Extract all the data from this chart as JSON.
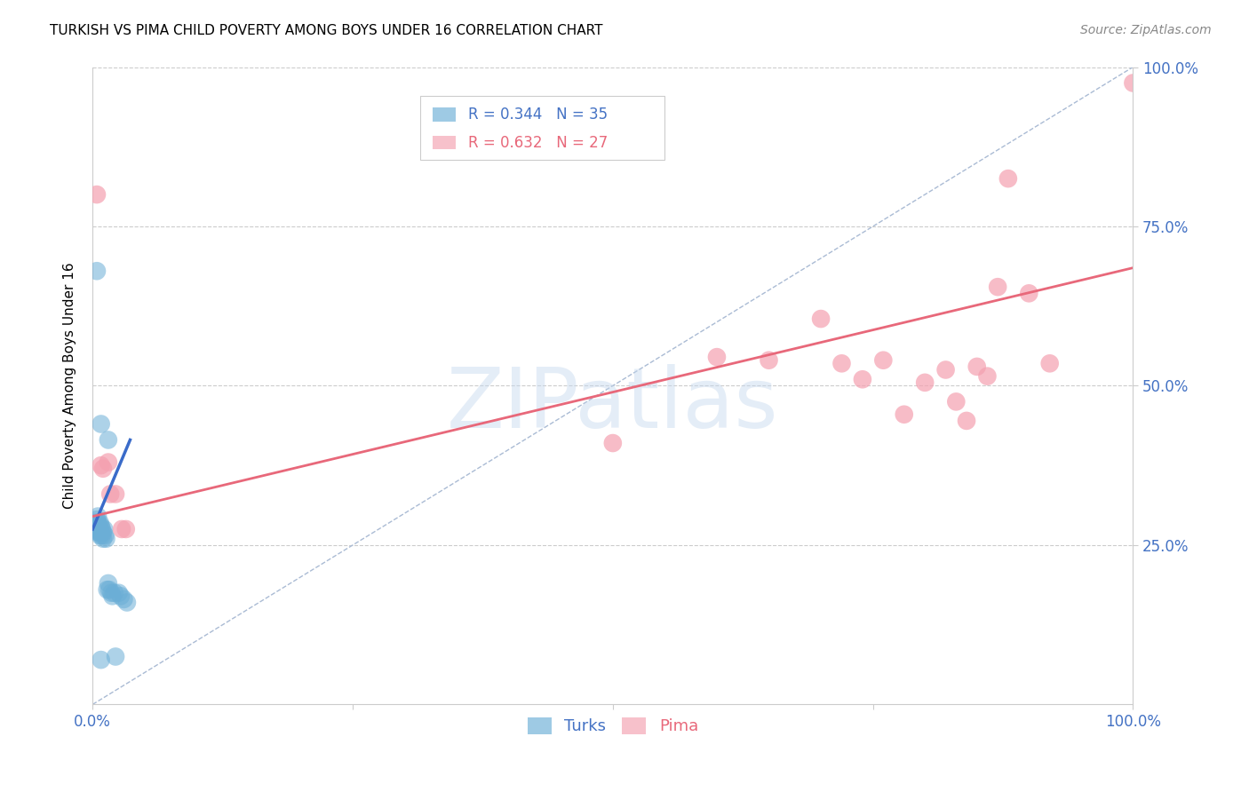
{
  "title": "TURKISH VS PIMA CHILD POVERTY AMONG BOYS UNDER 16 CORRELATION CHART",
  "source": "Source: ZipAtlas.com",
  "ylabel": "Child Poverty Among Boys Under 16",
  "xlim": [
    0.0,
    1.0
  ],
  "ylim": [
    0.0,
    1.0
  ],
  "xticks": [
    0.0,
    0.25,
    0.5,
    0.75,
    1.0
  ],
  "yticks": [
    0.25,
    0.5,
    0.75,
    1.0
  ],
  "xticklabels": [
    "0.0%",
    "",
    "",
    "",
    "100.0%"
  ],
  "yticklabels_right": [
    "25.0%",
    "50.0%",
    "75.0%",
    "100.0%"
  ],
  "turks_color": "#6baed6",
  "pima_color": "#f4a0b0",
  "turks_color_line": "#3a6bc9",
  "pima_color_line": "#e8687a",
  "turks_R": 0.344,
  "turks_N": 35,
  "pima_R": 0.632,
  "pima_N": 27,
  "turks_points": [
    [
      0.003,
      0.285
    ],
    [
      0.004,
      0.29
    ],
    [
      0.004,
      0.275
    ],
    [
      0.005,
      0.295
    ],
    [
      0.005,
      0.285
    ],
    [
      0.005,
      0.27
    ],
    [
      0.006,
      0.28
    ],
    [
      0.006,
      0.27
    ],
    [
      0.007,
      0.285
    ],
    [
      0.007,
      0.275
    ],
    [
      0.007,
      0.265
    ],
    [
      0.008,
      0.28
    ],
    [
      0.008,
      0.27
    ],
    [
      0.009,
      0.275
    ],
    [
      0.009,
      0.265
    ],
    [
      0.01,
      0.27
    ],
    [
      0.01,
      0.26
    ],
    [
      0.011,
      0.275
    ],
    [
      0.012,
      0.265
    ],
    [
      0.013,
      0.26
    ],
    [
      0.014,
      0.18
    ],
    [
      0.015,
      0.19
    ],
    [
      0.016,
      0.18
    ],
    [
      0.018,
      0.175
    ],
    [
      0.019,
      0.17
    ],
    [
      0.021,
      0.175
    ],
    [
      0.025,
      0.175
    ],
    [
      0.027,
      0.17
    ],
    [
      0.03,
      0.165
    ],
    [
      0.033,
      0.16
    ],
    [
      0.008,
      0.44
    ],
    [
      0.015,
      0.415
    ],
    [
      0.004,
      0.68
    ],
    [
      0.008,
      0.07
    ],
    [
      0.022,
      0.075
    ]
  ],
  "pima_points": [
    [
      0.004,
      0.8
    ],
    [
      0.008,
      0.375
    ],
    [
      0.01,
      0.37
    ],
    [
      0.015,
      0.38
    ],
    [
      0.017,
      0.33
    ],
    [
      0.022,
      0.33
    ],
    [
      0.028,
      0.275
    ],
    [
      0.032,
      0.275
    ],
    [
      0.5,
      0.41
    ],
    [
      0.6,
      0.545
    ],
    [
      0.65,
      0.54
    ],
    [
      0.7,
      0.605
    ],
    [
      0.72,
      0.535
    ],
    [
      0.74,
      0.51
    ],
    [
      0.76,
      0.54
    ],
    [
      0.78,
      0.455
    ],
    [
      0.8,
      0.505
    ],
    [
      0.82,
      0.525
    ],
    [
      0.83,
      0.475
    ],
    [
      0.84,
      0.445
    ],
    [
      0.85,
      0.53
    ],
    [
      0.86,
      0.515
    ],
    [
      0.87,
      0.655
    ],
    [
      0.88,
      0.825
    ],
    [
      0.9,
      0.645
    ],
    [
      0.92,
      0.535
    ],
    [
      1.0,
      0.975
    ]
  ],
  "turks_line": [
    [
      0.0,
      0.275
    ],
    [
      0.036,
      0.415
    ]
  ],
  "pima_line": [
    [
      0.0,
      0.295
    ],
    [
      1.0,
      0.685
    ]
  ],
  "diag_line": [
    [
      0.0,
      0.0
    ],
    [
      1.0,
      1.0
    ]
  ],
  "background_color": "#ffffff",
  "grid_color": "#cccccc",
  "diag_color": "#aabbd4",
  "tick_color": "#4472c4",
  "title_fontsize": 11,
  "source_fontsize": 10,
  "tick_fontsize": 12,
  "ylabel_fontsize": 11
}
